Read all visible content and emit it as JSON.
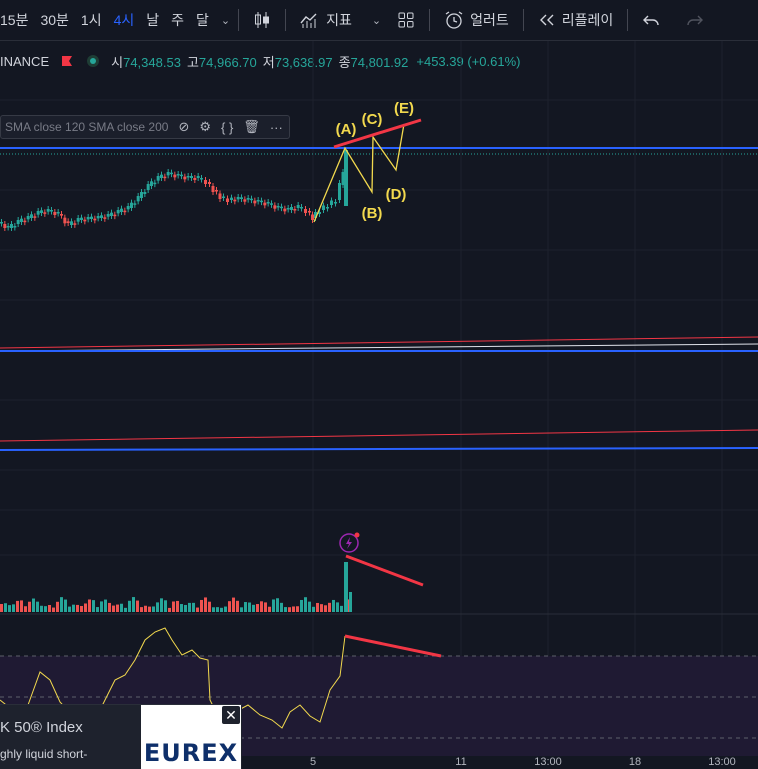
{
  "toolbar": {
    "timeframes": [
      {
        "label": "15분",
        "active": false
      },
      {
        "label": "30분",
        "active": false
      },
      {
        "label": "1시",
        "active": false
      },
      {
        "label": "4시",
        "active": true
      },
      {
        "label": "날",
        "active": false
      },
      {
        "label": "주",
        "active": false
      },
      {
        "label": "달",
        "active": false
      }
    ],
    "indicators_label": "지표",
    "alert_label": "얼러트",
    "replay_label": "리플레이"
  },
  "legend": {
    "symbol": "INANCE",
    "open_label": "시",
    "open": "74,348.53",
    "high_label": "고",
    "high": "74,966.70",
    "low_label": "저",
    "low": "73,638.97",
    "close_label": "종",
    "close": "74,801.92",
    "change": "+453.39 (+0.61%)"
  },
  "indicator_legend": {
    "text": "SMA close 120 SMA close 200"
  },
  "annotations": {
    "A": "(A)",
    "B": "(B)",
    "C": "(C)",
    "D": "(D)",
    "E": "(E)"
  },
  "xaxis": {
    "labels": [
      "5",
      "11",
      "13:00",
      "18",
      "13:00"
    ]
  },
  "ad": {
    "title": "K 50® Index",
    "subtitle": "ghly liquid short-",
    "logo": "EUREX"
  },
  "colors": {
    "background": "#131722",
    "up": "#26a69a",
    "down": "#ef5350",
    "accent": "#2962ff",
    "annotation": "#f2d94e",
    "trendline": "#f23645"
  }
}
